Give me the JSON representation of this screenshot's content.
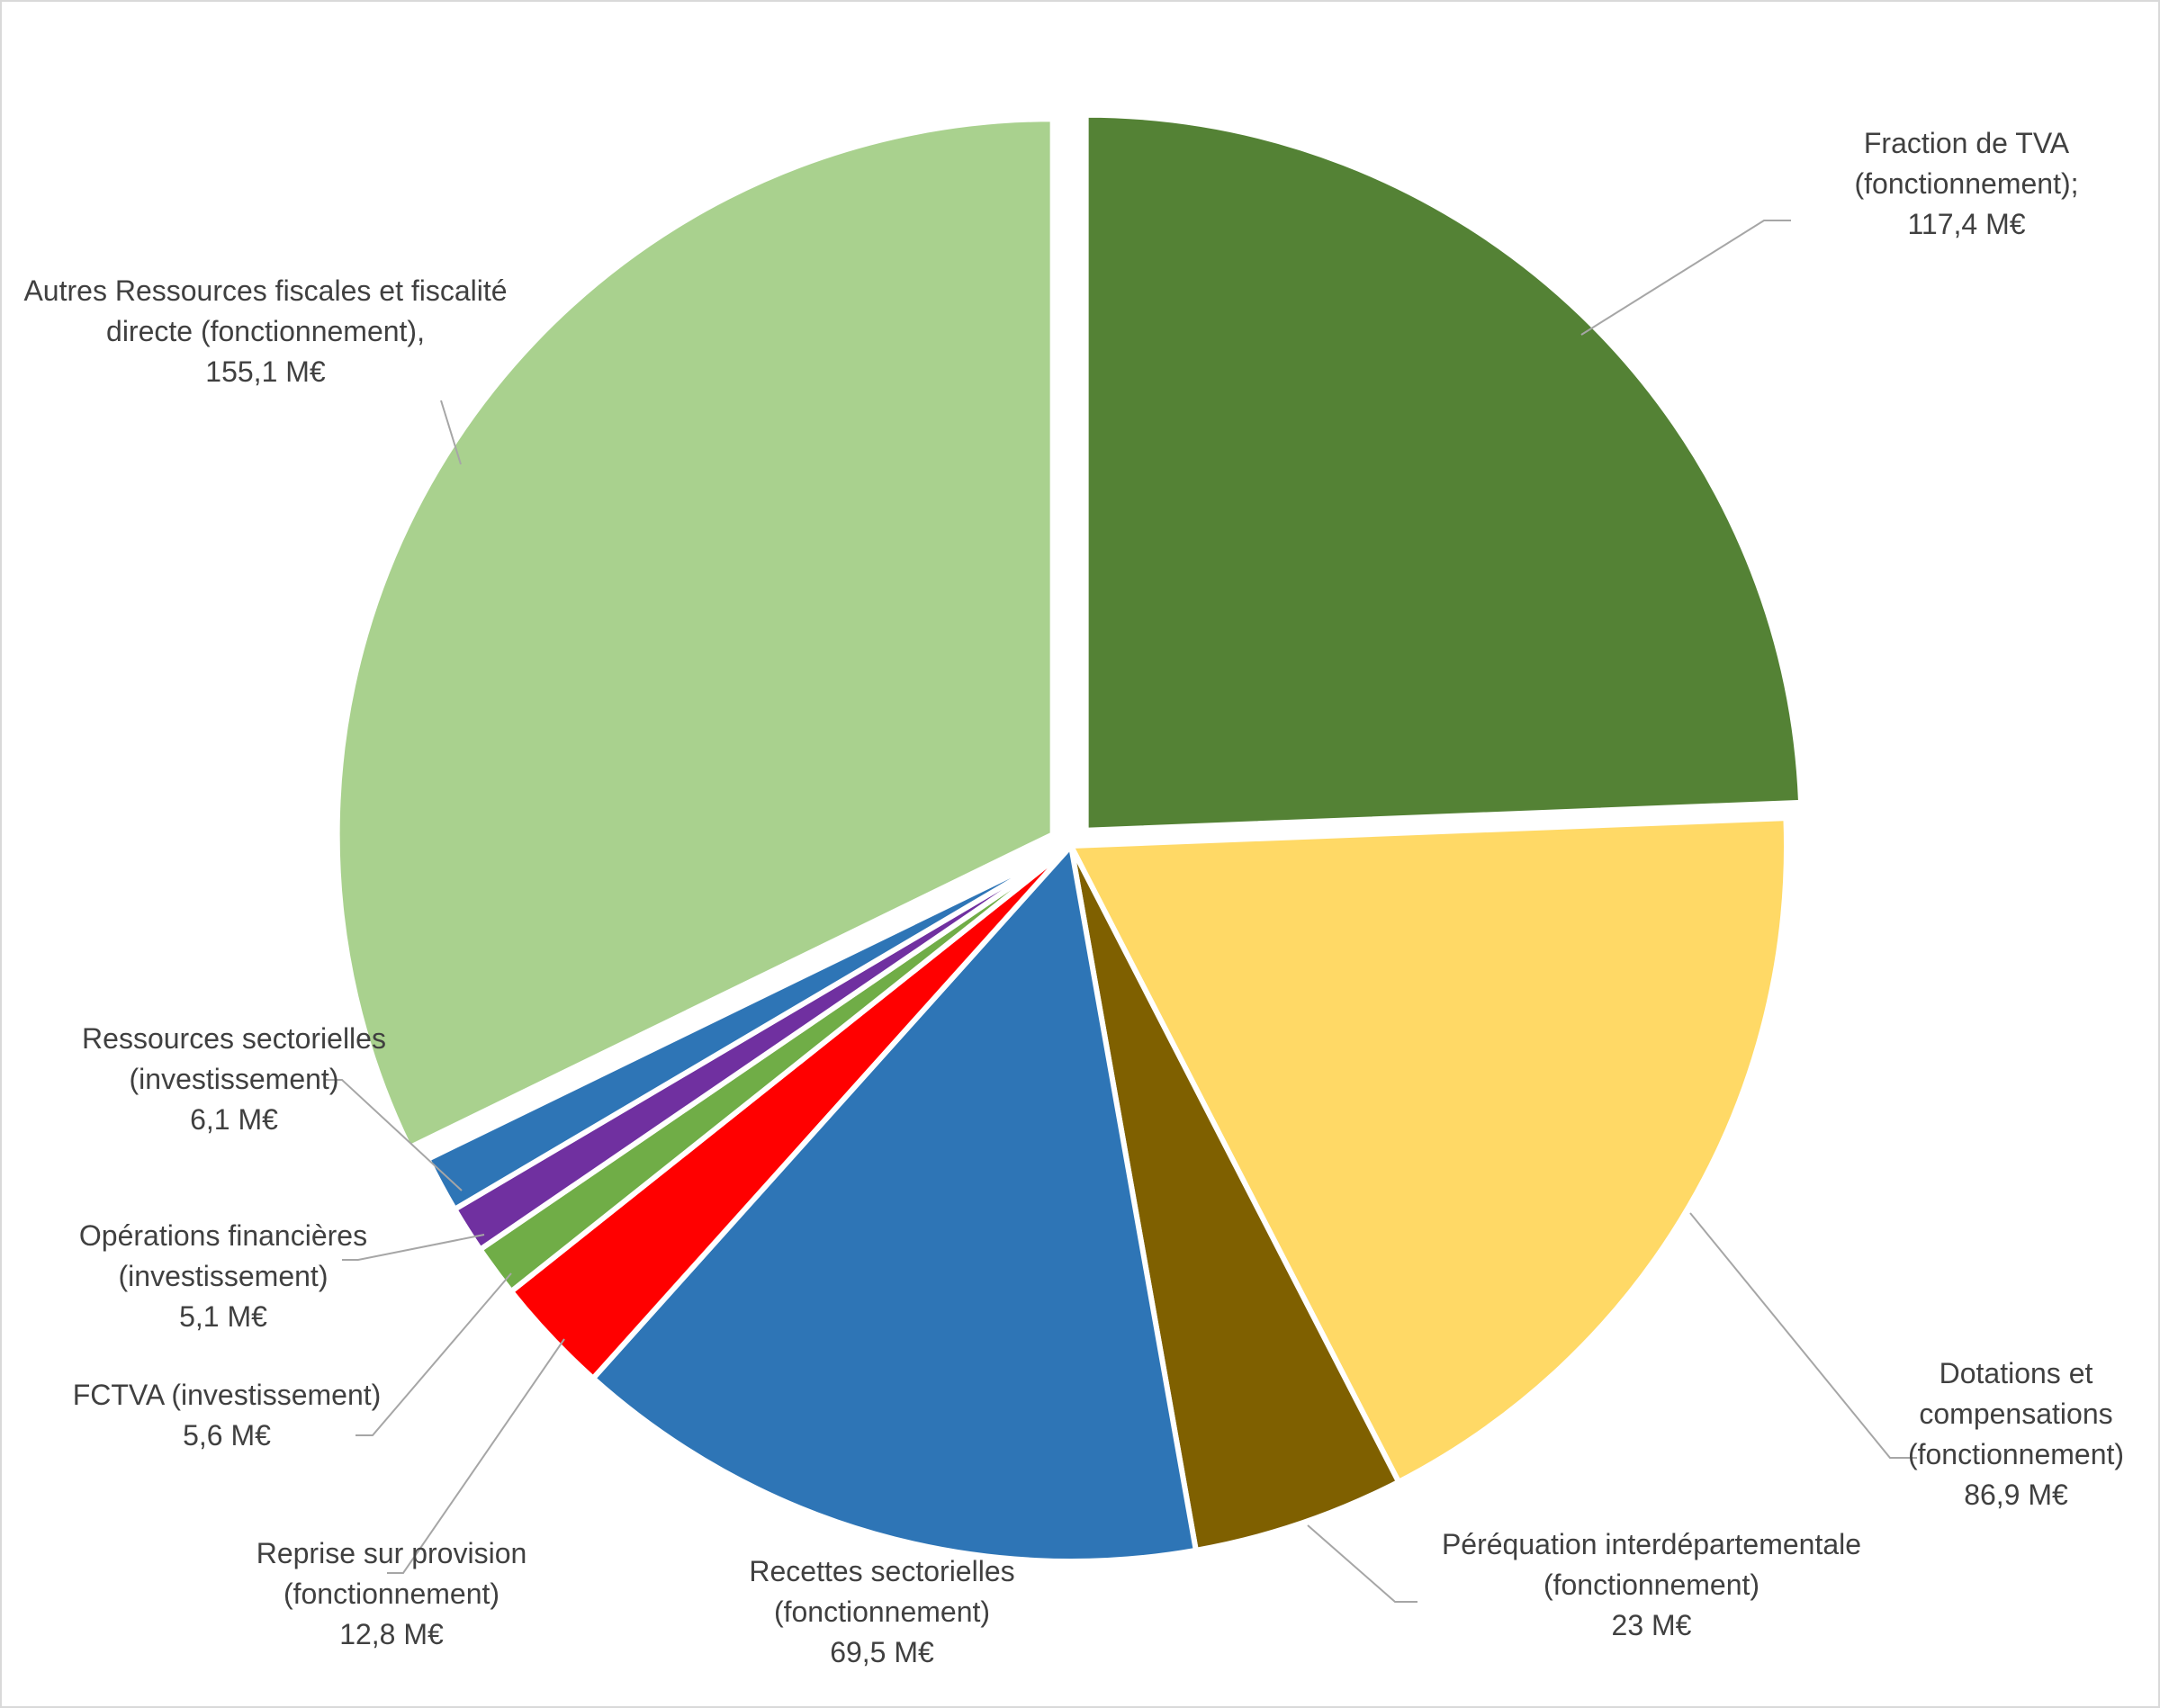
{
  "chart_data": {
    "type": "pie",
    "title": "",
    "unit": "M€",
    "legend": "none",
    "slices": [
      {
        "category": "Fraction de TVA (fonctionnement)",
        "value": 117.4,
        "color": "#548235",
        "explode": true,
        "label_lines": [
          "Fraction de TVA",
          "(fonctionnement);",
          "117,4 M€"
        ]
      },
      {
        "category": "Dotations et compensations (fonctionnement)",
        "value": 86.9,
        "color": "#ffd966",
        "explode": false,
        "label_lines": [
          "Dotations et",
          "compensations",
          "(fonctionnement)",
          "86,9 M€"
        ]
      },
      {
        "category": "Péréquation interdépartementale (fonctionnement)",
        "value": 23,
        "color": "#7f6000",
        "explode": false,
        "label_lines": [
          "Péréquation interdépartementale",
          "(fonctionnement)",
          "23 M€"
        ]
      },
      {
        "category": "Recettes sectorielles (fonctionnement)",
        "value": 69.5,
        "color": "#2e75b6",
        "explode": false,
        "label_lines": [
          "Recettes sectorielles",
          "(fonctionnement)",
          "69,5 M€"
        ]
      },
      {
        "category": "Reprise sur provision (fonctionnement)",
        "value": 12.8,
        "color": "#ff0000",
        "explode": false,
        "label_lines": [
          "Reprise sur provision",
          "(fonctionnement)",
          "12,8 M€"
        ]
      },
      {
        "category": "FCTVA (investissement)",
        "value": 5.6,
        "color": "#70ad47",
        "explode": false,
        "label_lines": [
          "FCTVA (investissement)",
          "5,6 M€"
        ]
      },
      {
        "category": "Opérations financières (investissement)",
        "value": 5.1,
        "color": "#7030a0",
        "explode": false,
        "label_lines": [
          "Opérations financières",
          "(investissement)",
          "5,1 M€"
        ]
      },
      {
        "category": "Ressources sectorielles (investissement)",
        "value": 6.1,
        "color": "#2e75b6",
        "explode": false,
        "label_lines": [
          "Ressources sectorielles",
          "(investissement)",
          "6,1 M€"
        ]
      },
      {
        "category": "Autres Ressources fiscales et fiscalité directe (fonctionnement)",
        "value": 155.1,
        "color": "#a9d18e",
        "explode": true,
        "label_lines": [
          "Autres Ressources fiscales et fiscalité",
          "directe (fonctionnement),",
          "155,1 M€"
        ]
      }
    ]
  }
}
